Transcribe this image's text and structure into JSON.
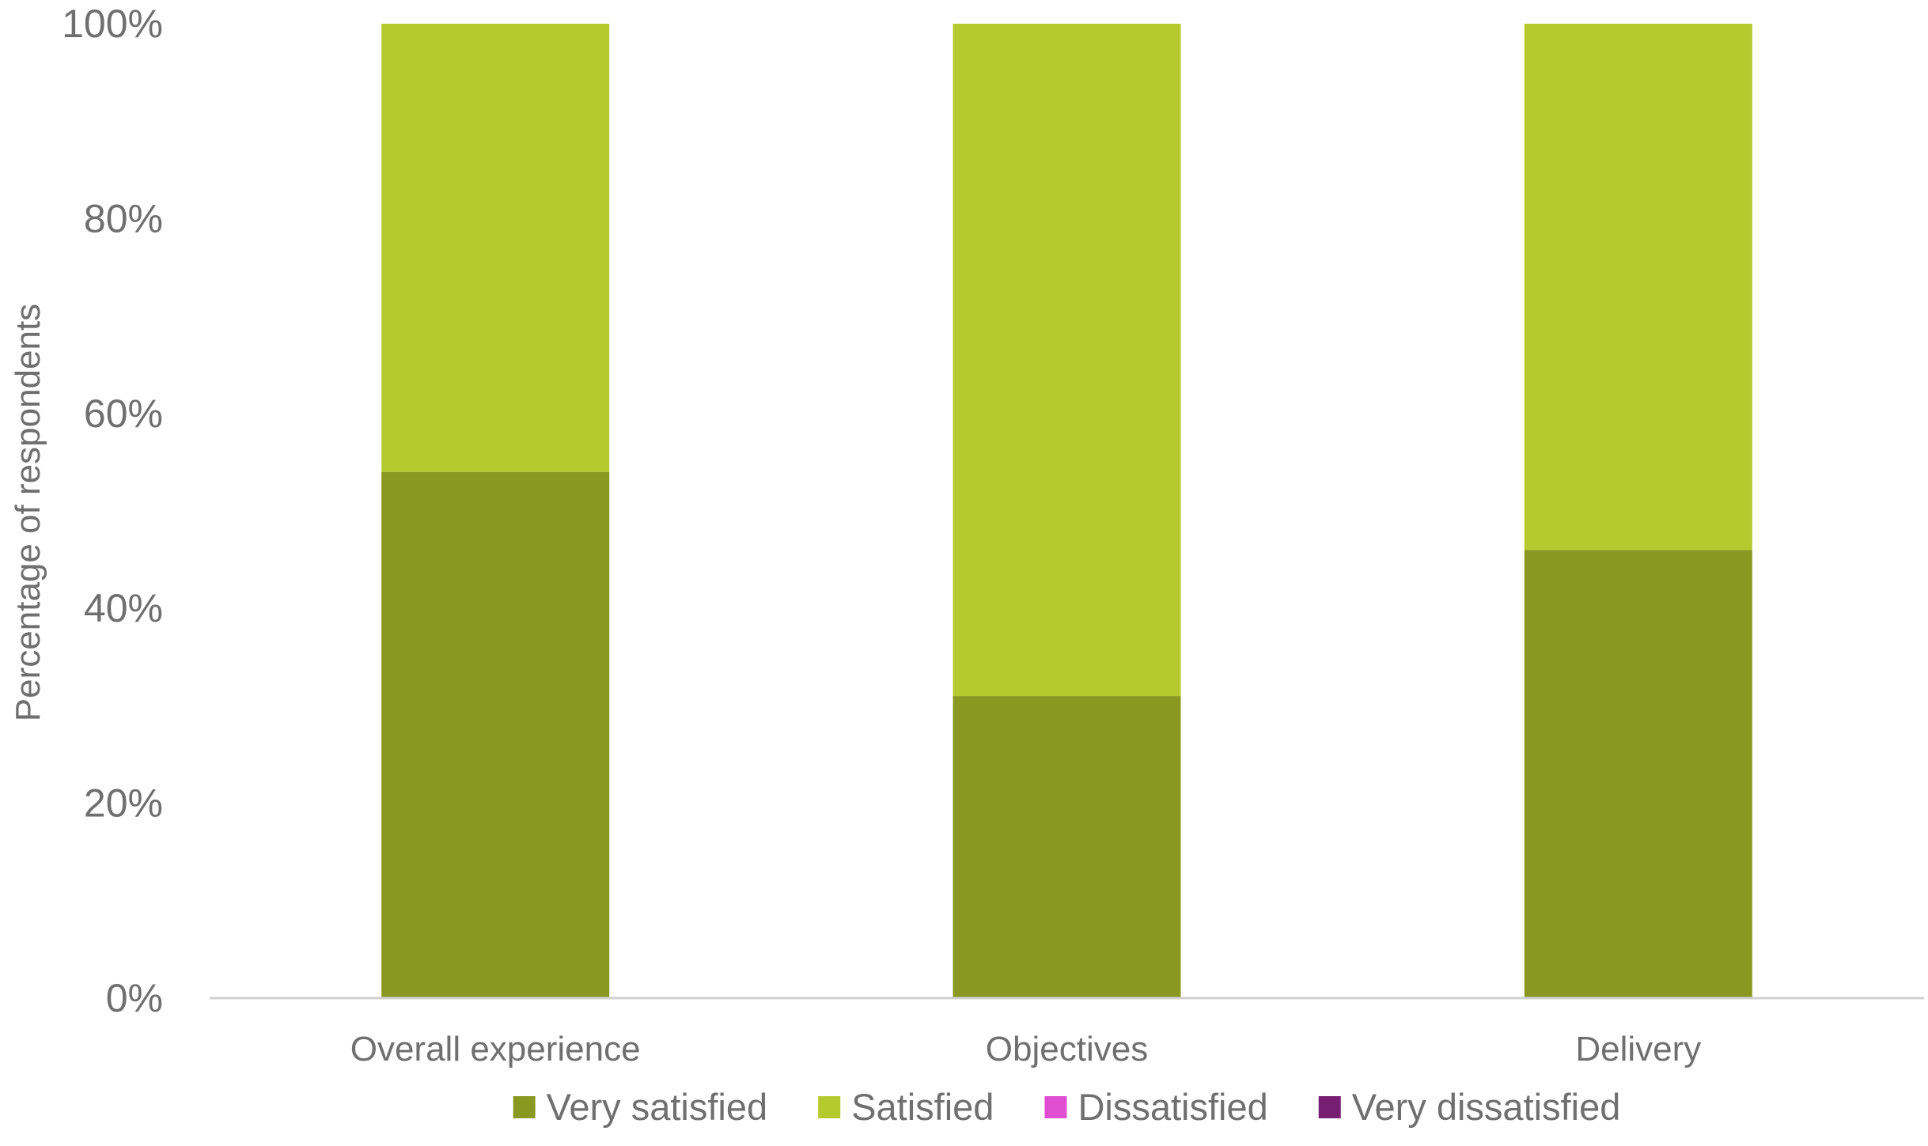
{
  "chart_data": {
    "type": "bar",
    "stacked": true,
    "categories": [
      "Overall experience",
      "Objectives",
      "Delivery"
    ],
    "series": [
      {
        "name": "Very satisfied",
        "color": "#889821",
        "values": [
          54,
          31,
          46
        ]
      },
      {
        "name": "Satisfied",
        "color": "#b5ca2e",
        "values": [
          46,
          69,
          54
        ]
      },
      {
        "name": "Dissatisfied",
        "color": "#e04ed2",
        "values": [
          0,
          0,
          0
        ]
      },
      {
        "name": "Very dissatisfied",
        "color": "#761f72",
        "values": [
          0,
          0,
          0
        ]
      }
    ],
    "ylabel": "Percentage of respondents",
    "ylim": [
      0,
      100
    ],
    "yticks": [
      0,
      20,
      40,
      60,
      80,
      100
    ],
    "ytick_labels": [
      "0%",
      "20%",
      "40%",
      "60%",
      "80%",
      "100%"
    ],
    "grid": false,
    "legend_position": "bottom"
  }
}
